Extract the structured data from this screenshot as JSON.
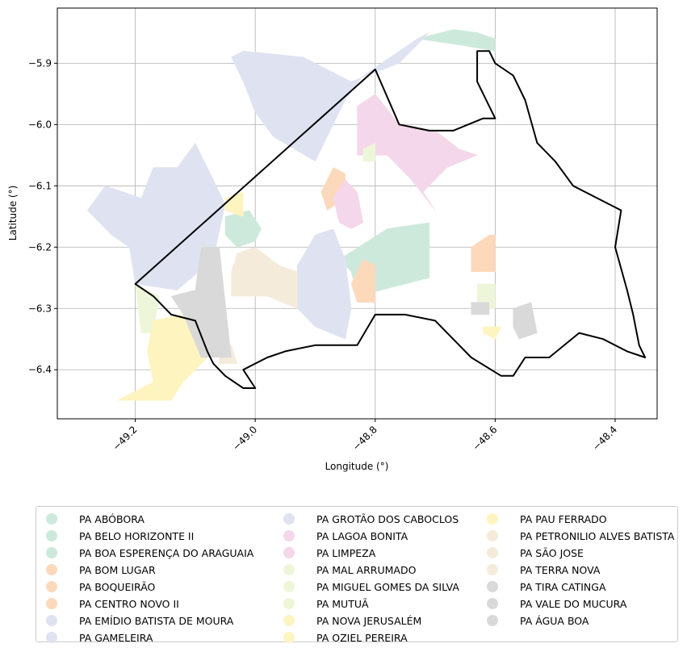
{
  "chart_data": {
    "type": "map",
    "xlabel": "Longitude (°)",
    "ylabel": "Latitude (°)",
    "xlim": [
      -49.33,
      -48.33
    ],
    "ylim": [
      -6.48,
      -5.81
    ],
    "x_ticks": [
      -49.2,
      -49.0,
      -48.8,
      -48.6,
      -48.4
    ],
    "x_tick_labels": [
      "−49.2",
      "−49.0",
      "−48.8",
      "−48.6",
      "−48.4"
    ],
    "y_ticks": [
      -5.9,
      -6.0,
      -6.1,
      -6.2,
      -6.3,
      -6.4
    ],
    "y_tick_labels": [
      "−5.9",
      "−6.0",
      "−6.1",
      "−6.2",
      "−6.3",
      "−6.4"
    ],
    "grid": true,
    "legend_position": "bottom",
    "legend_columns": 3,
    "boundary_color": "#000000",
    "series": [
      {
        "name": "PA ABÓBORA",
        "color": "#cde9db",
        "polygons": []
      },
      {
        "name": "PA BELO HORIZONTE II",
        "color": "#cde9db",
        "polygons": [
          [
            [
              -48.86,
              -6.22
            ],
            [
              -48.78,
              -6.17
            ],
            [
              -48.71,
              -6.16
            ],
            [
              -48.71,
              -6.25
            ],
            [
              -48.83,
              -6.28
            ],
            [
              -48.84,
              -6.24
            ]
          ]
        ]
      },
      {
        "name": "PA BOA ESPERENÇA DO ARAGUAIA",
        "color": "#cde9db",
        "polygons": [
          [
            [
              -48.73,
              -5.86
            ],
            [
              -48.67,
              -5.845
            ],
            [
              -48.63,
              -5.85
            ],
            [
              -48.6,
              -5.86
            ],
            [
              -48.6,
              -5.88
            ],
            [
              -48.66,
              -5.87
            ]
          ],
          [
            [
              -49.05,
              -6.15
            ],
            [
              -49.01,
              -6.14
            ],
            [
              -48.99,
              -6.17
            ],
            [
              -49.0,
              -6.19
            ],
            [
              -49.03,
              -6.2
            ],
            [
              -49.05,
              -6.18
            ]
          ]
        ]
      },
      {
        "name": "PA BOM LUGAR",
        "color": "#fdd9bc",
        "polygons": [
          [
            [
              -48.89,
              -6.11
            ],
            [
              -48.87,
              -6.07
            ],
            [
              -48.85,
              -6.08
            ],
            [
              -48.85,
              -6.12
            ],
            [
              -48.88,
              -6.14
            ]
          ]
        ]
      },
      {
        "name": "PA BOQUEIRÃO",
        "color": "#fdd9bc",
        "polygons": [
          [
            [
              -48.84,
              -6.26
            ],
            [
              -48.82,
              -6.22
            ],
            [
              -48.8,
              -6.23
            ],
            [
              -48.8,
              -6.29
            ],
            [
              -48.83,
              -6.29
            ]
          ]
        ]
      },
      {
        "name": "PA CENTRO NOVO II",
        "color": "#fdd9bc",
        "polygons": [
          [
            [
              -48.64,
              -6.2
            ],
            [
              -48.61,
              -6.18
            ],
            [
              -48.6,
              -6.18
            ],
            [
              -48.6,
              -6.24
            ],
            [
              -48.64,
              -6.24
            ]
          ]
        ]
      },
      {
        "name": "PA EMÍDIO BATISTA DE MOURA",
        "color": "#dfe3f1",
        "polygons": [
          [
            [
              -49.04,
              -5.89
            ],
            [
              -49.02,
              -5.88
            ],
            [
              -48.92,
              -5.89
            ],
            [
              -48.84,
              -5.93
            ],
            [
              -48.76,
              -5.9
            ],
            [
              -48.71,
              -5.85
            ],
            [
              -48.73,
              -5.86
            ],
            [
              -48.82,
              -5.92
            ],
            [
              -48.85,
              -5.96
            ],
            [
              -48.88,
              -6.02
            ],
            [
              -48.9,
              -6.06
            ],
            [
              -48.97,
              -6.02
            ],
            [
              -49.0,
              -5.98
            ],
            [
              -49.02,
              -5.93
            ]
          ]
        ]
      },
      {
        "name": "PA GAMELEIRA",
        "color": "#dfe3f1",
        "polygons": [
          [
            [
              -49.17,
              -6.07
            ],
            [
              -49.13,
              -6.07
            ],
            [
              -49.1,
              -6.03
            ],
            [
              -49.05,
              -6.13
            ],
            [
              -49.07,
              -6.22
            ],
            [
              -49.13,
              -6.27
            ],
            [
              -49.2,
              -6.26
            ],
            [
              -49.21,
              -6.2
            ],
            [
              -49.24,
              -6.18
            ],
            [
              -49.28,
              -6.14
            ],
            [
              -49.25,
              -6.1
            ],
            [
              -49.19,
              -6.12
            ]
          ],
          [
            [
              -48.9,
              -6.18
            ],
            [
              -48.87,
              -6.17
            ],
            [
              -48.85,
              -6.22
            ],
            [
              -48.84,
              -6.3
            ],
            [
              -48.85,
              -6.35
            ],
            [
              -48.9,
              -6.33
            ],
            [
              -48.93,
              -6.3
            ],
            [
              -48.93,
              -6.23
            ]
          ]
        ]
      },
      {
        "name": "PA GROTÃO DOS CABOCLOS",
        "color": "#dfe3f1",
        "polygons": []
      },
      {
        "name": "PA LAGOA BONITA",
        "color": "#f4d7ea",
        "polygons": [
          [
            [
              -48.83,
              -5.97
            ],
            [
              -48.8,
              -5.95
            ],
            [
              -48.76,
              -6.0
            ],
            [
              -48.7,
              -6.01
            ],
            [
              -48.66,
              -6.04
            ],
            [
              -48.63,
              -6.05
            ],
            [
              -48.68,
              -6.07
            ],
            [
              -48.72,
              -6.11
            ],
            [
              -48.7,
              -6.14
            ],
            [
              -48.74,
              -6.09
            ],
            [
              -48.78,
              -6.05
            ],
            [
              -48.83,
              -6.05
            ]
          ]
        ]
      },
      {
        "name": "PA LIMPEZA",
        "color": "#f4d7ea",
        "polygons": [
          [
            [
              -48.87,
              -6.12
            ],
            [
              -48.85,
              -6.09
            ],
            [
              -48.83,
              -6.11
            ],
            [
              -48.82,
              -6.16
            ],
            [
              -48.84,
              -6.17
            ],
            [
              -48.86,
              -6.16
            ]
          ]
        ]
      },
      {
        "name": "PA MAL ARRUMADO",
        "color": "#eef6d9",
        "polygons": [
          [
            [
              -48.82,
              -6.04
            ],
            [
              -48.8,
              -6.03
            ],
            [
              -48.8,
              -6.06
            ],
            [
              -48.82,
              -6.06
            ]
          ]
        ]
      },
      {
        "name": "PA MIGUEL GOMES DA SILVA",
        "color": "#eef6d9",
        "polygons": [
          [
            [
              -48.63,
              -6.26
            ],
            [
              -48.6,
              -6.26
            ],
            [
              -48.6,
              -6.3
            ],
            [
              -48.63,
              -6.3
            ]
          ]
        ]
      },
      {
        "name": "PA MUTUÃ",
        "color": "#eef6d9",
        "polygons": [
          [
            [
              -49.2,
              -6.26
            ],
            [
              -49.16,
              -6.28
            ],
            [
              -49.17,
              -6.34
            ],
            [
              -49.19,
              -6.34
            ]
          ]
        ]
      },
      {
        "name": "PA NOVA JERUSALÉM",
        "color": "#fef4c0",
        "polygons": [
          [
            [
              -49.05,
              -6.12
            ],
            [
              -49.02,
              -6.11
            ],
            [
              -49.02,
              -6.15
            ],
            [
              -49.05,
              -6.14
            ]
          ]
        ]
      },
      {
        "name": "PA OZIEL PEREIRA",
        "color": "#fef4c0",
        "polygons": [
          [
            [
              -48.62,
              -6.33
            ],
            [
              -48.59,
              -6.33
            ],
            [
              -48.6,
              -6.35
            ],
            [
              -48.62,
              -6.34
            ]
          ]
        ]
      },
      {
        "name": "PA PAU FERRADO",
        "color": "#fef4c0",
        "polygons": [
          [
            [
              -49.17,
              -6.32
            ],
            [
              -49.12,
              -6.31
            ],
            [
              -49.08,
              -6.33
            ],
            [
              -49.08,
              -6.38
            ],
            [
              -49.12,
              -6.42
            ],
            [
              -49.14,
              -6.45
            ],
            [
              -49.23,
              -6.45
            ],
            [
              -49.17,
              -6.42
            ],
            [
              -49.18,
              -6.37
            ]
          ]
        ]
      },
      {
        "name": "PA PETRONILIO ALVES BATISTA",
        "color": "#f5ebdb",
        "polygons": [
          [
            [
              -49.03,
              -6.21
            ],
            [
              -49.0,
              -6.2
            ],
            [
              -48.96,
              -6.23
            ],
            [
              -48.93,
              -6.24
            ],
            [
              -48.93,
              -6.3
            ],
            [
              -48.98,
              -6.28
            ],
            [
              -49.04,
              -6.28
            ],
            [
              -49.04,
              -6.24
            ]
          ]
        ]
      },
      {
        "name": "PA SÃO JOSE",
        "color": "#f5ebdb",
        "polygons": [
          [
            [
              -49.06,
              -6.36
            ],
            [
              -49.04,
              -6.36
            ],
            [
              -49.03,
              -6.39
            ],
            [
              -49.06,
              -6.39
            ]
          ]
        ]
      },
      {
        "name": "PA TERRA NOVA",
        "color": "#f5ebdb",
        "polygons": []
      },
      {
        "name": "PA TIRA CATINGA",
        "color": "#d9d9d9",
        "polygons": [
          [
            [
              -49.09,
              -6.2
            ],
            [
              -49.06,
              -6.2
            ],
            [
              -49.05,
              -6.29
            ],
            [
              -49.04,
              -6.38
            ],
            [
              -49.09,
              -6.38
            ],
            [
              -49.12,
              -6.31
            ],
            [
              -49.14,
              -6.28
            ],
            [
              -49.1,
              -6.27
            ]
          ]
        ]
      },
      {
        "name": "PA VALE DO MUCURA",
        "color": "#d9d9d9",
        "polygons": [
          [
            [
              -48.64,
              -6.29
            ],
            [
              -48.61,
              -6.29
            ],
            [
              -48.61,
              -6.31
            ],
            [
              -48.64,
              -6.31
            ]
          ]
        ]
      },
      {
        "name": "PA ÁGUA BOA",
        "color": "#d9d9d9",
        "polygons": [
          [
            [
              -48.57,
              -6.3
            ],
            [
              -48.54,
              -6.29
            ],
            [
              -48.53,
              -6.34
            ],
            [
              -48.56,
              -6.35
            ],
            [
              -48.57,
              -6.33
            ]
          ]
        ]
      }
    ],
    "boundary": [
      [
        -49.2,
        -6.26
      ],
      [
        -48.8,
        -5.91
      ],
      [
        -48.76,
        -6.0
      ],
      [
        -48.71,
        -6.01
      ],
      [
        -48.67,
        -6.01
      ],
      [
        -48.62,
        -5.99
      ],
      [
        -48.6,
        -5.99
      ],
      [
        -48.63,
        -5.93
      ],
      [
        -48.63,
        -5.88
      ],
      [
        -48.61,
        -5.88
      ],
      [
        -48.6,
        -5.9
      ],
      [
        -48.57,
        -5.92
      ],
      [
        -48.55,
        -5.96
      ],
      [
        -48.53,
        -6.03
      ],
      [
        -48.5,
        -6.06
      ],
      [
        -48.47,
        -6.1
      ],
      [
        -48.43,
        -6.12
      ],
      [
        -48.39,
        -6.14
      ],
      [
        -48.4,
        -6.2
      ],
      [
        -48.38,
        -6.27
      ],
      [
        -48.37,
        -6.31
      ],
      [
        -48.36,
        -6.36
      ],
      [
        -48.35,
        -6.38
      ],
      [
        -48.38,
        -6.37
      ],
      [
        -48.42,
        -6.35
      ],
      [
        -48.46,
        -6.34
      ],
      [
        -48.51,
        -6.38
      ],
      [
        -48.55,
        -6.38
      ],
      [
        -48.57,
        -6.41
      ],
      [
        -48.59,
        -6.41
      ],
      [
        -48.64,
        -6.38
      ],
      [
        -48.7,
        -6.32
      ],
      [
        -48.75,
        -6.31
      ],
      [
        -48.8,
        -6.31
      ],
      [
        -48.83,
        -6.36
      ],
      [
        -48.86,
        -6.36
      ],
      [
        -48.9,
        -6.36
      ],
      [
        -48.95,
        -6.37
      ],
      [
        -48.98,
        -6.38
      ],
      [
        -49.02,
        -6.4
      ],
      [
        -49.0,
        -6.43
      ],
      [
        -49.02,
        -6.43
      ],
      [
        -49.05,
        -6.41
      ],
      [
        -49.07,
        -6.39
      ],
      [
        -49.08,
        -6.37
      ],
      [
        -49.1,
        -6.32
      ],
      [
        -49.14,
        -6.31
      ],
      [
        -49.17,
        -6.28
      ]
    ]
  }
}
